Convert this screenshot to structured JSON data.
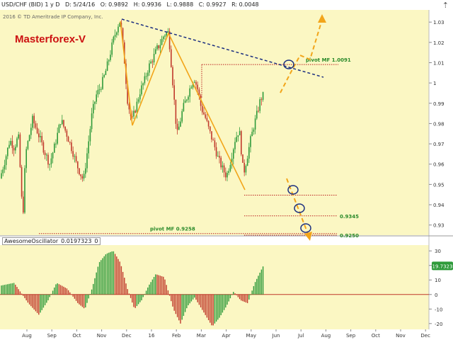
{
  "header": {
    "symbol": "USD/CHF (BID) 1 y D",
    "date": "D: 5/24/16",
    "open": "O: 0.9892",
    "high": "H: 0.9936",
    "low": "L: 0.9888",
    "close": "C: 0.9927",
    "range": "R: 0.0048",
    "copyright": "2016 © TD Ameritrade IP Company, Inc.",
    "watermark": "Masterforex-V"
  },
  "indicator": {
    "name": "AwesomeOscillator",
    "value": "0.0197323",
    "param": "0",
    "last_badge": "19.7323"
  },
  "colors": {
    "background": "#fbf7c3",
    "bull": "#2e9a3a",
    "bear": "#c0392b",
    "trend_orange": "#f2a51a",
    "resistance_blue": "#1c2f80",
    "pivot_red": "#bb2222",
    "label_green": "#2a8a2a",
    "circle": "#1c2f80"
  },
  "chart_data": {
    "type": "candlestick",
    "x_months": [
      "Aug",
      "Sep",
      "Oct",
      "Nov",
      "Dec",
      "16",
      "Feb",
      "Mar",
      "Apr",
      "May",
      "Jun",
      "Jul",
      "Aug",
      "Sep",
      "Oct",
      "Nov",
      "Dec"
    ],
    "y_ticks": [
      "1.03",
      "1.02",
      "1.01",
      "1",
      "0.99",
      "0.98",
      "0.97",
      "0.96",
      "0.95",
      "0.94",
      "0.93"
    ],
    "ylim": [
      0.925,
      1.036
    ],
    "close_path": [
      [
        0,
        0.953
      ],
      [
        7,
        0.962
      ],
      [
        14,
        0.972
      ],
      [
        20,
        0.968
      ],
      [
        26,
        0.974
      ],
      [
        30,
        0.948
      ],
      [
        32,
        0.931
      ],
      [
        36,
        0.965
      ],
      [
        46,
        0.982
      ],
      [
        54,
        0.975
      ],
      [
        62,
        0.967
      ],
      [
        70,
        0.96
      ],
      [
        78,
        0.97
      ],
      [
        86,
        0.982
      ],
      [
        94,
        0.975
      ],
      [
        102,
        0.967
      ],
      [
        108,
        0.96
      ],
      [
        114,
        0.955
      ],
      [
        118,
        0.952
      ],
      [
        124,
        0.968
      ],
      [
        130,
        0.985
      ],
      [
        136,
        0.994
      ],
      [
        142,
        0.998
      ],
      [
        148,
        1.004
      ],
      [
        154,
        1.012
      ],
      [
        160,
        1.021
      ],
      [
        166,
        1.028
      ],
      [
        170,
        1.031
      ],
      [
        176,
        1.01
      ],
      [
        180,
        0.992
      ],
      [
        186,
        0.981
      ],
      [
        192,
        0.988
      ],
      [
        198,
        0.996
      ],
      [
        204,
        1.001
      ],
      [
        210,
        1.008
      ],
      [
        216,
        1.012
      ],
      [
        222,
        1.017
      ],
      [
        226,
        1.019
      ],
      [
        232,
        1.024
      ],
      [
        238,
        1.025
      ],
      [
        242,
        1.009
      ],
      [
        246,
        0.992
      ],
      [
        250,
        0.974
      ],
      [
        254,
        0.98
      ],
      [
        258,
        0.987
      ],
      [
        264,
        0.993
      ],
      [
        268,
        0.997
      ],
      [
        274,
        1.003
      ],
      [
        280,
        0.996
      ],
      [
        284,
        0.988
      ],
      [
        290,
        0.983
      ],
      [
        296,
        0.976
      ],
      [
        302,
        0.97
      ],
      [
        308,
        0.963
      ],
      [
        314,
        0.958
      ],
      [
        320,
        0.954
      ],
      [
        326,
        0.962
      ],
      [
        332,
        0.972
      ],
      [
        338,
        0.977
      ],
      [
        344,
        0.955
      ],
      [
        350,
        0.965
      ],
      [
        354,
        0.972
      ],
      [
        358,
        0.978
      ],
      [
        364,
        0.986
      ],
      [
        368,
        0.992
      ],
      [
        372,
        0.994
      ]
    ],
    "ao_ticks": [
      "30",
      "20",
      "10",
      "0",
      "-10",
      "-20"
    ],
    "ao_ylim": [
      -24,
      34
    ],
    "ao_path": [
      [
        0,
        6
      ],
      [
        20,
        8
      ],
      [
        40,
        -6
      ],
      [
        55,
        -14
      ],
      [
        68,
        -4
      ],
      [
        80,
        8
      ],
      [
        95,
        4
      ],
      [
        110,
        -6
      ],
      [
        120,
        -10
      ],
      [
        130,
        4
      ],
      [
        140,
        22
      ],
      [
        150,
        28
      ],
      [
        160,
        30
      ],
      [
        170,
        22
      ],
      [
        180,
        4
      ],
      [
        190,
        -10
      ],
      [
        200,
        -4
      ],
      [
        210,
        6
      ],
      [
        220,
        14
      ],
      [
        232,
        12
      ],
      [
        245,
        -10
      ],
      [
        255,
        -20
      ],
      [
        265,
        -8
      ],
      [
        275,
        -2
      ],
      [
        285,
        -10
      ],
      [
        300,
        -22
      ],
      [
        310,
        -16
      ],
      [
        320,
        -8
      ],
      [
        330,
        2
      ],
      [
        340,
        -4
      ],
      [
        350,
        -6
      ],
      [
        360,
        8
      ],
      [
        372,
        19.7
      ]
    ],
    "annotations": [
      {
        "label": "pivot MF 1.0091",
        "value": 1.0091
      },
      {
        "label": "pivot MF 0.9258",
        "value": 0.9258
      },
      {
        "label": "0.9345",
        "value": 0.9345
      },
      {
        "label": "0.9250",
        "value": 0.925
      }
    ],
    "levels": {
      "support_1": 0.9447
    }
  }
}
